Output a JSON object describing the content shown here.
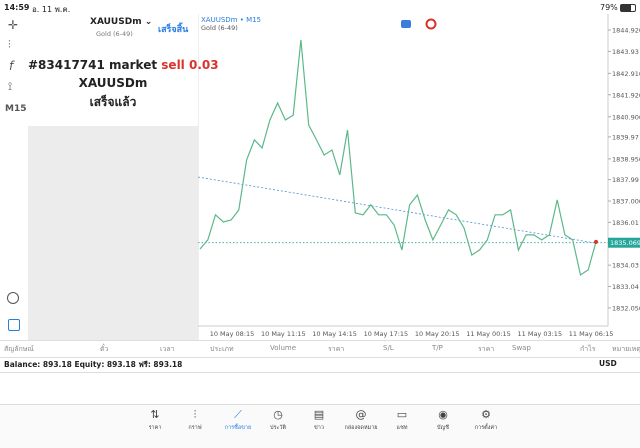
{
  "status_bar": {
    "time": "14:59",
    "date": "อ. 11 พ.ค.",
    "battery": "79%"
  },
  "sidebar": {
    "timeframe": "M15"
  },
  "order_panel": {
    "symbol": "XAUUSDm",
    "description": "Gold (6-49)",
    "done_button": "เสร็จสิ้น",
    "message": {
      "ticket": "#83417741 market",
      "action": "sell 0.03",
      "symbol": "XAUUSDm",
      "status": "เสร็จแล้ว"
    }
  },
  "chart_data": {
    "type": "line",
    "title": "XAUUSDm • M15",
    "subtitle": "Gold (6-49)",
    "color": "#5cb88a",
    "values": [
      1834.78,
      1835.2,
      1836.36,
      1836.03,
      1836.12,
      1836.59,
      1838.9,
      1839.83,
      1839.46,
      1840.75,
      1841.54,
      1840.75,
      1840.98,
      1844.46,
      1840.52,
      1839.83,
      1839.13,
      1839.36,
      1838.21,
      1840.29,
      1836.45,
      1836.36,
      1836.82,
      1836.36,
      1836.36,
      1835.89,
      1834.73,
      1836.82,
      1837.28,
      1836.12,
      1835.2,
      1835.89,
      1836.59,
      1836.36,
      1835.75,
      1834.5,
      1834.73,
      1835.2,
      1836.36,
      1836.36,
      1836.59,
      1834.73,
      1835.43,
      1835.43,
      1835.2,
      1835.43,
      1837.05,
      1835.43,
      1835.2,
      1833.58,
      1833.81,
      1835.11
    ],
    "time_labels": [
      "10 May 08:15",
      "10 May 11:15",
      "10 May 14:15",
      "10 May 17:15",
      "10 May 20:15",
      "11 May 00:15",
      "11 May 03:15",
      "11 May 06:15"
    ],
    "ylim": [
      1831.49,
      1845.66
    ],
    "yticks": [
      {
        "value": 1844.92,
        "label": "1844.920"
      },
      1843.93,
      {
        "value": 1842.91,
        "label": "1842.910"
      },
      {
        "value": 1841.92,
        "label": "1841.920"
      },
      {
        "value": 1840.9,
        "label": "1840.900"
      },
      1839.97,
      {
        "value": 1838.95,
        "label": "1838.950"
      },
      1837.99,
      {
        "value": 1837,
        "label": "1837.000"
      },
      1836.01,
      1834.03,
      1833.04,
      {
        "value": 1832.05,
        "label": "1832.050"
      }
    ],
    "current_price": 1835.069,
    "current_price_color": "#26a69a",
    "trendline": [
      1838.11,
      1835.05
    ],
    "trendline_color": "#4a90d9"
  },
  "table": {
    "columns": [
      "สัญลักษณ์",
      "ตั๋ว",
      "เวลา",
      "ประเภท",
      "Volume",
      "ราคา",
      "S/L",
      "T/P",
      "ราคา",
      "Swap",
      "กำไร",
      "หมายเหตุ"
    ],
    "balance": "Balance: 893.18 Equity: 893.18 ฟรี: 893.18",
    "currency": "USD"
  },
  "tab_bar": {
    "tabs": [
      "ราคา",
      "กราฟ",
      "การซื้อขาย",
      "ประวัติ",
      "ข่าว",
      "กล่องจดหมาย",
      "แชท",
      "บัญชี",
      "การตั้งค่า"
    ],
    "active": 2
  }
}
